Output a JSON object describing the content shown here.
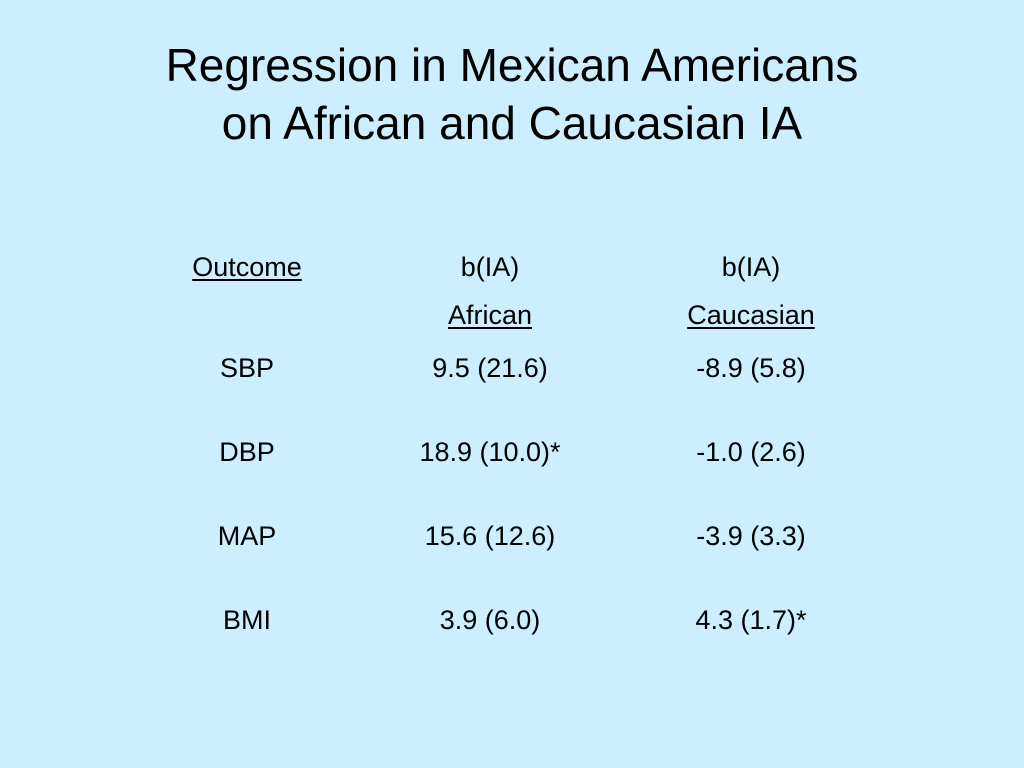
{
  "slide": {
    "title_line1": "Regression in Mexican Americans",
    "title_line2": "on African and Caucasian IA",
    "background_color": "#cceeff"
  },
  "table": {
    "header": {
      "outcome": "Outcome",
      "col_african_line1": "b(IA)",
      "col_african_line2": "African",
      "col_caucasian_line1": "b(IA)",
      "col_caucasian_line2": "Caucasian"
    },
    "rows": [
      {
        "outcome": "SBP",
        "african": "9.5 (21.6)",
        "caucasian": "-8.9 (5.8)"
      },
      {
        "outcome": "DBP",
        "african": "18.9 (10.0)*",
        "caucasian": "-1.0 (2.6)"
      },
      {
        "outcome": "MAP",
        "african": "15.6 (12.6)",
        "caucasian": "-3.9 (3.3)"
      },
      {
        "outcome": "BMI",
        "african": "3.9 (6.0)",
        "caucasian": "4.3 (1.7)*"
      }
    ]
  }
}
